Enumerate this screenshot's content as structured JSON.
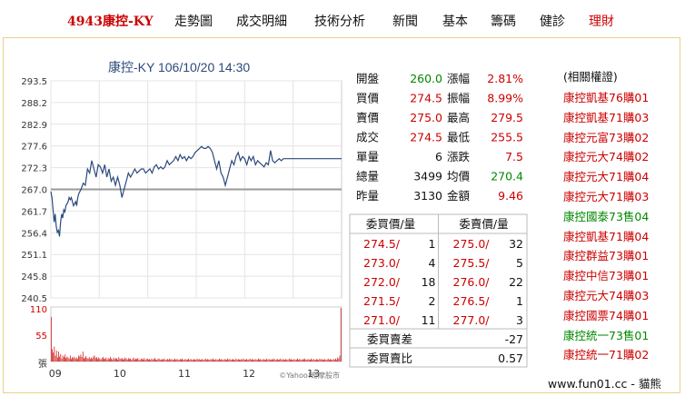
{
  "nav": {
    "title": "4943康控-KY",
    "items": [
      "走勢圖",
      "成交明細",
      "技術分析",
      "新聞",
      "基本",
      "籌碼",
      "健診",
      "理財"
    ]
  },
  "chart": {
    "heading": "康控-KY 106/10/20 14:30",
    "y_ticks": [
      "293.5",
      "288.2",
      "282.9",
      "277.6",
      "272.3",
      "267.0",
      "261.7",
      "256.4",
      "251.1",
      "245.8",
      "240.5"
    ],
    "vol_ticks": [
      "110",
      "55",
      "張"
    ],
    "x_ticks": [
      "09",
      "10",
      "11",
      "12",
      "13"
    ],
    "ref_price": 267.0,
    "watermark": "©Yahoo!奇摩股市"
  },
  "quote": {
    "rows": [
      {
        "l1": "開盤",
        "v1": "260.0",
        "l2": "漲幅",
        "v2": "2.81%"
      },
      {
        "l1": "買價",
        "v1": "274.5",
        "l2": "振幅",
        "v2": "8.99%"
      },
      {
        "l1": "賣價",
        "v1": "275.0",
        "l2": "最高",
        "v2": "279.5"
      },
      {
        "l1": "成交",
        "v1": "274.5",
        "l2": "最低",
        "v2": "255.5"
      },
      {
        "l1": "單量",
        "v1": "6",
        "l2": "漲跌",
        "v2": "7.5"
      },
      {
        "l1": "總量",
        "v1": "3499",
        "l2": "均價",
        "v2": "270.4"
      },
      {
        "l1": "昨量",
        "v1": "3130",
        "l2": "金額",
        "v2": "9.46"
      }
    ]
  },
  "book": {
    "bid_header": "委買價/量",
    "ask_header": "委賣價/量",
    "bids": [
      [
        "274.5",
        "1"
      ],
      [
        "273.0",
        "4"
      ],
      [
        "272.0",
        "18"
      ],
      [
        "271.5",
        "2"
      ],
      [
        "271.0",
        "11"
      ]
    ],
    "asks": [
      [
        "275.0",
        "32"
      ],
      [
        "275.5",
        "5"
      ],
      [
        "276.0",
        "22"
      ],
      [
        "276.5",
        "1"
      ],
      [
        "277.0",
        "3"
      ]
    ],
    "diff_label": "委買賣差",
    "diff_value": "-27",
    "ratio_label": "委買賣比",
    "ratio_value": "0.57"
  },
  "warrants": {
    "title": "(相關權證)",
    "items": [
      {
        "name": "康控凱基76購01",
        "color": "#c00"
      },
      {
        "name": "康控凱基71購03",
        "color": "#c00"
      },
      {
        "name": "康控元富73購02",
        "color": "#c00"
      },
      {
        "name": "康控元大74購02",
        "color": "#c00"
      },
      {
        "name": "康控元大71購04",
        "color": "#c00"
      },
      {
        "name": "康控元大71購03",
        "color": "#c00"
      },
      {
        "name": "康控國泰73售04",
        "color": "#080"
      },
      {
        "name": "康控凱基71購04",
        "color": "#c00"
      },
      {
        "name": "康控群益73購01",
        "color": "#c00"
      },
      {
        "name": "康控中信73購01",
        "color": "#c00"
      },
      {
        "name": "康控元大74購03",
        "color": "#c00"
      },
      {
        "name": "康控國票74購01",
        "color": "#c00"
      },
      {
        "name": "康控統一73售01",
        "color": "#080"
      },
      {
        "name": "康控統一71購02",
        "color": "#c00"
      }
    ]
  },
  "footer": "www.fun01.cc - 貓熊",
  "colors": {
    "up": "#c00",
    "down": "#080",
    "line": "#2c4a7c",
    "ref": "#999"
  },
  "chart_data": {
    "type": "line",
    "title": "康控-KY 106/10/20 14:30",
    "xlabel": "",
    "ylabel": "",
    "ylim": [
      240.5,
      293.5
    ],
    "x_ticks": [
      "09",
      "10",
      "11",
      "12",
      "13"
    ],
    "price_series": [
      [
        0,
        266.5
      ],
      [
        1,
        265
      ],
      [
        2,
        262
      ],
      [
        3,
        259
      ],
      [
        4,
        261
      ],
      [
        5,
        258
      ],
      [
        6,
        256.5
      ],
      [
        7,
        257
      ],
      [
        8,
        255.5
      ],
      [
        9,
        259
      ],
      [
        10,
        261
      ],
      [
        11,
        260
      ],
      [
        12,
        262
      ],
      [
        13,
        261.5
      ],
      [
        14,
        263
      ],
      [
        15,
        263.5
      ],
      [
        16,
        264
      ],
      [
        17,
        265
      ],
      [
        18,
        264.5
      ],
      [
        19,
        265
      ],
      [
        20,
        264
      ],
      [
        21,
        263
      ],
      [
        22,
        263.5
      ],
      [
        23,
        264
      ],
      [
        24,
        263
      ],
      [
        25,
        265
      ],
      [
        26,
        266
      ],
      [
        28,
        267
      ],
      [
        30,
        268.5
      ],
      [
        32,
        268
      ],
      [
        34,
        272
      ],
      [
        36,
        271
      ],
      [
        38,
        274
      ],
      [
        40,
        272
      ],
      [
        42,
        270
      ],
      [
        44,
        273
      ],
      [
        46,
        272.5
      ],
      [
        48,
        271
      ],
      [
        50,
        273
      ],
      [
        52,
        270
      ],
      [
        54,
        272
      ],
      [
        56,
        269
      ],
      [
        58,
        270
      ],
      [
        60,
        268
      ],
      [
        62,
        270
      ],
      [
        64,
        268
      ],
      [
        66,
        265
      ],
      [
        68,
        267
      ],
      [
        70,
        269
      ],
      [
        72,
        271
      ],
      [
        74,
        270
      ],
      [
        76,
        271
      ],
      [
        78,
        272
      ],
      [
        80,
        271
      ],
      [
        82,
        271.5
      ],
      [
        84,
        272
      ],
      [
        86,
        272
      ],
      [
        88,
        271
      ],
      [
        90,
        271.5
      ],
      [
        92,
        272
      ],
      [
        94,
        271
      ],
      [
        96,
        272.5
      ],
      [
        98,
        273
      ],
      [
        100,
        272
      ],
      [
        102,
        272.5
      ],
      [
        104,
        272
      ],
      [
        106,
        272.5
      ],
      [
        108,
        274
      ],
      [
        110,
        273
      ],
      [
        112,
        273.5
      ],
      [
        114,
        274
      ],
      [
        116,
        275
      ],
      [
        118,
        274
      ],
      [
        120,
        275.5
      ],
      [
        122,
        274.5
      ],
      [
        124,
        275
      ],
      [
        126,
        274
      ],
      [
        128,
        275
      ],
      [
        130,
        274.5
      ],
      [
        132,
        275
      ],
      [
        134,
        276
      ],
      [
        136,
        276.5
      ],
      [
        138,
        277
      ],
      [
        140,
        277.5
      ],
      [
        142,
        277
      ],
      [
        144,
        277
      ],
      [
        146,
        277.5
      ],
      [
        148,
        277
      ],
      [
        150,
        276
      ],
      [
        152,
        274
      ],
      [
        154,
        272
      ],
      [
        156,
        274
      ],
      [
        158,
        271
      ],
      [
        160,
        270
      ],
      [
        162,
        268
      ],
      [
        164,
        270
      ],
      [
        166,
        272
      ],
      [
        168,
        274
      ],
      [
        170,
        273
      ],
      [
        172,
        275
      ],
      [
        174,
        276
      ],
      [
        176,
        274
      ],
      [
        178,
        275
      ],
      [
        180,
        274.5
      ],
      [
        182,
        273
      ],
      [
        184,
        275
      ],
      [
        186,
        274
      ],
      [
        188,
        275
      ],
      [
        190,
        273
      ],
      [
        192,
        274
      ],
      [
        194,
        273.5
      ],
      [
        196,
        273
      ],
      [
        198,
        272.5
      ],
      [
        200,
        273.5
      ],
      [
        202,
        273
      ],
      [
        204,
        276.5
      ],
      [
        206,
        274
      ],
      [
        208,
        273.5
      ],
      [
        210,
        274
      ],
      [
        212,
        274.5
      ],
      [
        214,
        274
      ],
      [
        216,
        274.5
      ],
      [
        218,
        274.5
      ],
      [
        220,
        274.5
      ],
      [
        222,
        274.5
      ],
      [
        224,
        274.5
      ],
      [
        226,
        274.5
      ],
      [
        228,
        274.5
      ],
      [
        230,
        274.5
      ],
      [
        232,
        274.5
      ],
      [
        234,
        274.5
      ],
      [
        236,
        274.5
      ],
      [
        238,
        274.5
      ],
      [
        240,
        274.5
      ],
      [
        242,
        274.5
      ],
      [
        244,
        274.5
      ],
      [
        246,
        274.5
      ],
      [
        248,
        274.5
      ],
      [
        250,
        274.5
      ],
      [
        252,
        274.5
      ],
      [
        254,
        274.5
      ],
      [
        256,
        274.5
      ],
      [
        258,
        274.5
      ],
      [
        260,
        274.5
      ],
      [
        262,
        274.5
      ],
      [
        264,
        274.5
      ],
      [
        266,
        274.5
      ],
      [
        268,
        274.5
      ],
      [
        270,
        274.5
      ]
    ],
    "volume_ylim": [
      0,
      110
    ],
    "volume_series": [
      90,
      25,
      18,
      30,
      12,
      22,
      8,
      20,
      10,
      15,
      6,
      12,
      9,
      14,
      7,
      10,
      8,
      6,
      12,
      5,
      9,
      7,
      10,
      6,
      8,
      5,
      12,
      10,
      14,
      9,
      20,
      6,
      8,
      11,
      7,
      6,
      9,
      5,
      8,
      6,
      10,
      12,
      7,
      9,
      5,
      8,
      6,
      4,
      7,
      9,
      5,
      6,
      8,
      4,
      7,
      5,
      9,
      6,
      4,
      8,
      5,
      7,
      6,
      4,
      9,
      5,
      6,
      7,
      4,
      5,
      8,
      6,
      4,
      7,
      5,
      6,
      3,
      5,
      8,
      4,
      6,
      5,
      7,
      4,
      3,
      6,
      5,
      4,
      7,
      3,
      5,
      6,
      4,
      5,
      3,
      6,
      4,
      5,
      7,
      4,
      3,
      5,
      6,
      4,
      3,
      5,
      4,
      6,
      3,
      4,
      5,
      3,
      6,
      4,
      5,
      3,
      4,
      6,
      3,
      5,
      4,
      3,
      5,
      4,
      6,
      3,
      4,
      5,
      3,
      4,
      6,
      3,
      5,
      4,
      3,
      5,
      4,
      3,
      6,
      4,
      5,
      3,
      4,
      5,
      3,
      4,
      6,
      3,
      5,
      4,
      3,
      5,
      4,
      6,
      3,
      4,
      5,
      3,
      4,
      6,
      3,
      5,
      4,
      3,
      5,
      4,
      3,
      6,
      4,
      5,
      3,
      4,
      5,
      3,
      4,
      6,
      3,
      5,
      4,
      3,
      5,
      4,
      6,
      3,
      4,
      5,
      3,
      4,
      6,
      3,
      5,
      4,
      3,
      5,
      4,
      3,
      6,
      4,
      5,
      3,
      4,
      5,
      3,
      4,
      6,
      3,
      5,
      4,
      3,
      5,
      4,
      6,
      3,
      4,
      5,
      3,
      4,
      6,
      3,
      5,
      4,
      3,
      5,
      4,
      3,
      6,
      4,
      5,
      3,
      4,
      5,
      3,
      4,
      6,
      3,
      5,
      4,
      3,
      5,
      4,
      6,
      3,
      4,
      5,
      3,
      4,
      6,
      3,
      5,
      4,
      3,
      5,
      4,
      3,
      6,
      4,
      5,
      3,
      4,
      5,
      3,
      4,
      6,
      3,
      5,
      4,
      3,
      5,
      4,
      6,
      3,
      8,
      6,
      12,
      108
    ]
  }
}
